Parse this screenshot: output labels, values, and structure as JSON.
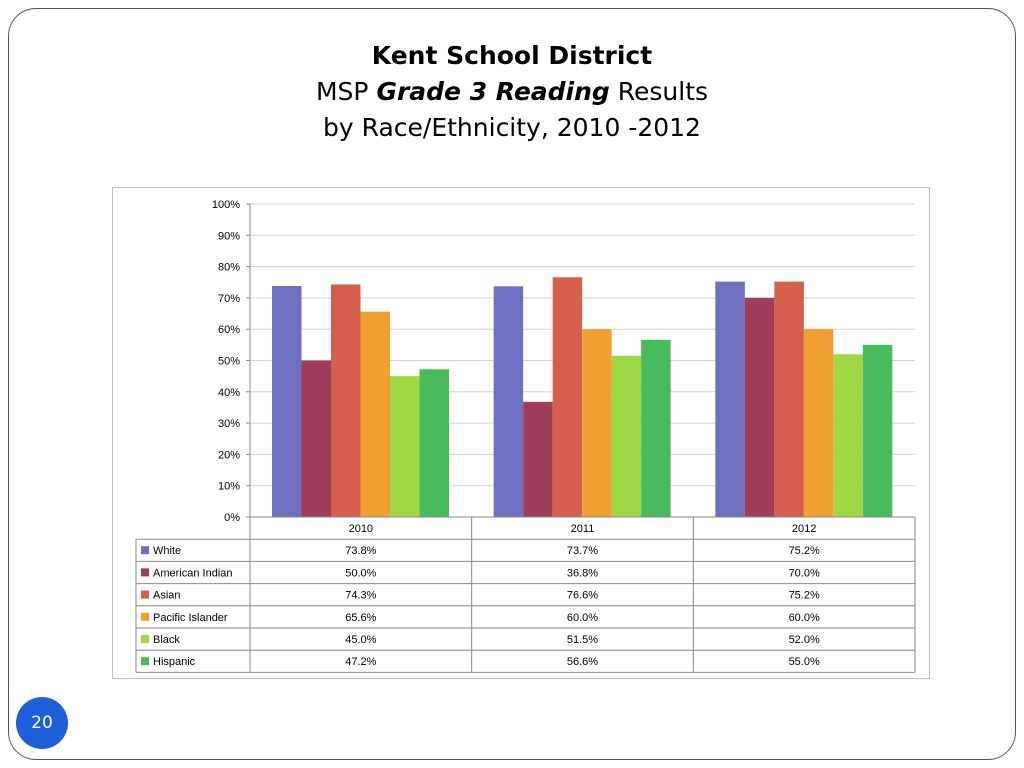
{
  "title": {
    "line1": "Kent School District",
    "line2_pre": "MSP ",
    "line2_em": "Grade 3 Reading",
    "line2_post": " Results",
    "line3": "by Race/Ethnicity, 2010 -2012"
  },
  "page_number": "20",
  "chart_data": {
    "type": "bar",
    "title": "Kent School District MSP Grade 3 Reading Results by Race/Ethnicity, 2010 -2012",
    "categories": [
      "2010",
      "2011",
      "2012"
    ],
    "ylim": [
      0,
      100
    ],
    "yticks": [
      "0%",
      "10%",
      "20%",
      "30%",
      "40%",
      "50%",
      "60%",
      "70%",
      "80%",
      "90%",
      "100%"
    ],
    "grid": true,
    "legend": "data-table",
    "series": [
      {
        "name": "White",
        "color": "#6f6fbf",
        "values": [
          73.8,
          73.7,
          75.2
        ],
        "labels": [
          "73.8%",
          "73.7%",
          "75.2%"
        ]
      },
      {
        "name": "American Indian",
        "color": "#9e3c5a",
        "values": [
          50.0,
          36.8,
          70.0
        ],
        "labels": [
          "50.0%",
          "36.8%",
          "70.0%"
        ]
      },
      {
        "name": "Asian",
        "color": "#d35f4c",
        "values": [
          74.3,
          76.6,
          75.2
        ],
        "labels": [
          "74.3%",
          "76.6%",
          "75.2%"
        ]
      },
      {
        "name": "Pacific Islander",
        "color": "#f0a030",
        "values": [
          65.6,
          60.0,
          60.0
        ],
        "labels": [
          "65.6%",
          "60.0%",
          "60.0%"
        ]
      },
      {
        "name": "Black",
        "color": "#9fd844",
        "values": [
          45.0,
          51.5,
          52.0
        ],
        "labels": [
          "45.0%",
          "51.5%",
          "52.0%"
        ]
      },
      {
        "name": "Hispanic",
        "color": "#48bb5c",
        "values": [
          47.2,
          56.6,
          55.0
        ],
        "labels": [
          "47.2%",
          "56.6%",
          "55.0%"
        ]
      }
    ]
  }
}
